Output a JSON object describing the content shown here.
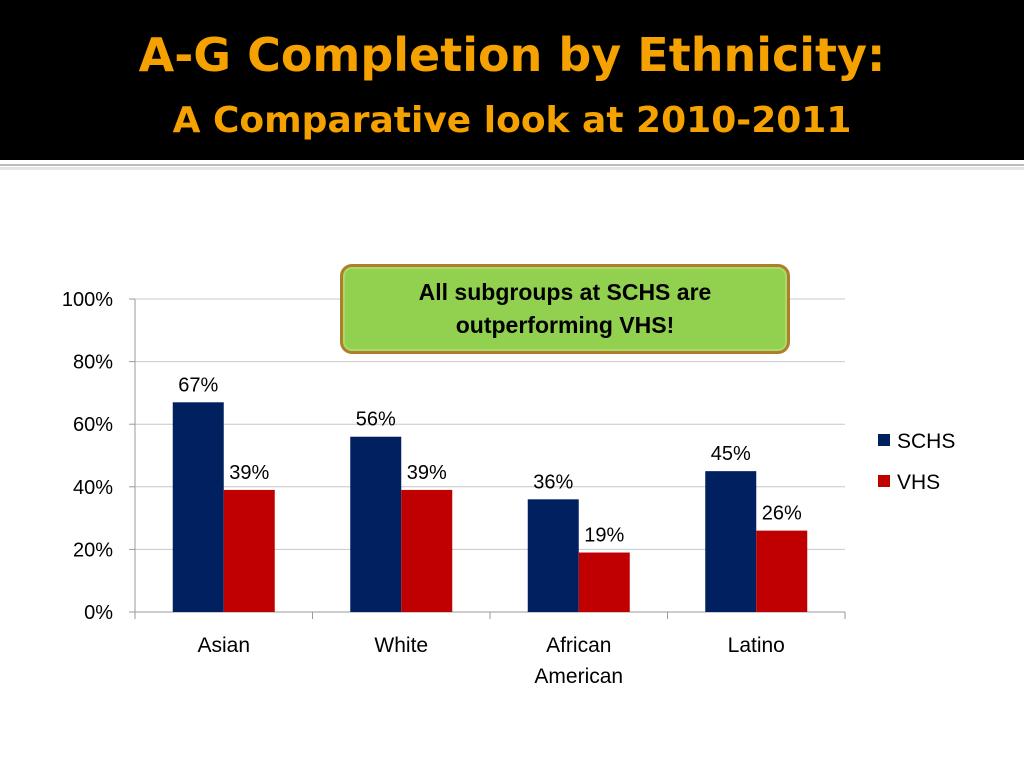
{
  "slide": {
    "title_line1": "A-G Completion by Ethnicity:",
    "title_line2": "A Comparative look at 2010-2011",
    "callout_text": "All subgroups at SCHS are outperforming VHS!"
  },
  "colors": {
    "title": "#f5a200",
    "schs": "#002060",
    "vhs": "#c00000",
    "callout_bg": "#92d050",
    "callout_border": "#b07d2a"
  },
  "chart_data": {
    "type": "bar",
    "categories": [
      [
        "Asian"
      ],
      [
        "White"
      ],
      [
        "African",
        "American"
      ],
      [
        "Latino"
      ]
    ],
    "series": [
      {
        "name": "SCHS",
        "values": [
          67,
          56,
          36,
          45
        ],
        "labels": [
          "67%",
          "56%",
          "36%",
          "45%"
        ],
        "color": "#002060"
      },
      {
        "name": "VHS",
        "values": [
          39,
          39,
          19,
          26
        ],
        "labels": [
          "39%",
          "39%",
          "19%",
          "26%"
        ],
        "color": "#c00000"
      }
    ],
    "yticks": [
      "0%",
      "20%",
      "40%",
      "60%",
      "80%",
      "100%"
    ],
    "ylim": [
      0,
      100
    ],
    "grid": true,
    "legend_position": "right"
  }
}
